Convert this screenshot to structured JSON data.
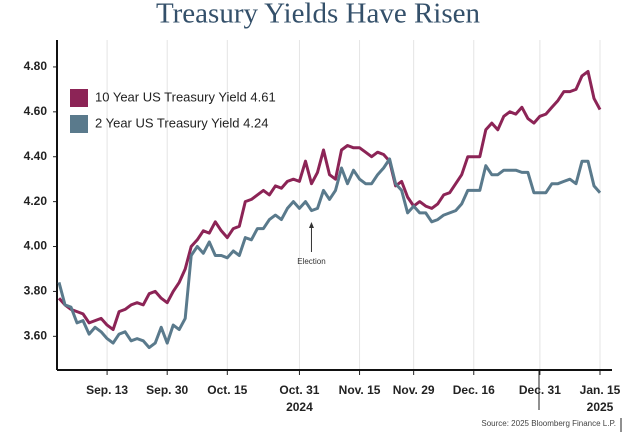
{
  "chart_data": {
    "type": "line",
    "title": "Treasury Yields Have Risen",
    "categories": [
      null,
      null,
      null,
      null,
      null,
      null,
      null,
      null,
      "Sep. 13",
      null,
      null,
      null,
      null,
      null,
      null,
      null,
      null,
      null,
      "Sep. 30",
      null,
      null,
      null,
      null,
      null,
      null,
      null,
      null,
      null,
      "Oct. 15",
      null,
      null,
      null,
      null,
      null,
      null,
      null,
      null,
      null,
      null,
      null,
      "Oct. 31",
      null,
      null,
      null,
      null,
      null,
      null,
      null,
      null,
      null,
      "Nov. 15",
      null,
      null,
      null,
      null,
      null,
      null,
      null,
      null,
      "Nov. 29",
      null,
      null,
      null,
      null,
      null,
      null,
      null,
      null,
      null,
      "Dec. 16",
      null,
      null,
      null,
      null,
      null,
      null,
      null,
      null,
      null,
      null,
      "Dec. 31",
      null,
      null,
      null,
      null,
      null,
      null,
      null,
      null,
      null,
      "Jan. 15"
    ],
    "x_year_labels": [
      {
        "label": "2024",
        "under": "Oct. 31"
      },
      {
        "label": "2025",
        "under": "Jan. 15"
      }
    ],
    "series": [
      {
        "name": "10 Year US Treasury Yield 4.61",
        "color": "#8c2456",
        "values": [
          3.77,
          3.74,
          3.72,
          3.71,
          3.7,
          3.66,
          3.67,
          3.68,
          3.65,
          3.63,
          3.71,
          3.72,
          3.74,
          3.75,
          3.74,
          3.79,
          3.8,
          3.77,
          3.75,
          3.8,
          3.84,
          3.9,
          4.0,
          4.03,
          4.07,
          4.06,
          4.11,
          4.07,
          4.04,
          4.08,
          4.09,
          4.2,
          4.21,
          4.23,
          4.25,
          4.23,
          4.27,
          4.26,
          4.29,
          4.3,
          4.29,
          4.38,
          4.28,
          4.33,
          4.43,
          4.32,
          4.3,
          4.43,
          4.45,
          4.44,
          4.44,
          4.42,
          4.4,
          4.42,
          4.41,
          4.38,
          4.27,
          4.29,
          4.22,
          4.18,
          4.2,
          4.18,
          4.17,
          4.19,
          4.23,
          4.24,
          4.28,
          4.32,
          4.4,
          4.4,
          4.4,
          4.52,
          4.55,
          4.52,
          4.58,
          4.6,
          4.59,
          4.62,
          4.57,
          4.55,
          4.58,
          4.59,
          4.62,
          4.65,
          4.69,
          4.69,
          4.7,
          4.76,
          4.78,
          4.66,
          4.61
        ]
      },
      {
        "name": "2 Year US Treasury Yield 4.24",
        "color": "#5a7a8c",
        "values": [
          3.84,
          3.74,
          3.73,
          3.66,
          3.67,
          3.61,
          3.64,
          3.62,
          3.59,
          3.57,
          3.61,
          3.62,
          3.58,
          3.59,
          3.58,
          3.55,
          3.57,
          3.64,
          3.57,
          3.65,
          3.63,
          3.68,
          3.96,
          4.0,
          3.97,
          4.02,
          3.96,
          3.96,
          3.95,
          3.98,
          3.96,
          4.04,
          4.03,
          4.08,
          4.08,
          4.12,
          4.14,
          4.12,
          4.17,
          4.2,
          4.17,
          4.2,
          4.16,
          4.17,
          4.25,
          4.21,
          4.25,
          4.35,
          4.28,
          4.34,
          4.3,
          4.28,
          4.28,
          4.32,
          4.35,
          4.39,
          4.28,
          4.25,
          4.15,
          4.18,
          4.15,
          4.15,
          4.11,
          4.12,
          4.14,
          4.15,
          4.16,
          4.19,
          4.25,
          4.25,
          4.25,
          4.36,
          4.32,
          4.32,
          4.34,
          4.34,
          4.34,
          4.33,
          4.33,
          4.24,
          4.24,
          4.24,
          4.28,
          4.28,
          4.29,
          4.3,
          4.28,
          4.38,
          4.38,
          4.27,
          4.24
        ]
      }
    ],
    "ylim": [
      3.45,
      4.92
    ],
    "yticks": [
      {
        "value": 3.6,
        "label": "3.60"
      },
      {
        "value": 3.8,
        "label": "3.80"
      },
      {
        "value": 4.0,
        "label": "4.00"
      },
      {
        "value": 4.2,
        "label": "4.20"
      },
      {
        "value": 4.4,
        "label": "4.40"
      },
      {
        "value": 4.6,
        "label": "4.60"
      },
      {
        "value": 4.8,
        "label": "4.80"
      }
    ],
    "grid": "x",
    "legend": "upper left",
    "annotations": [
      {
        "text": "Election"
      }
    ],
    "source": "Source: 2025 Bloomberg Finance L.P."
  }
}
